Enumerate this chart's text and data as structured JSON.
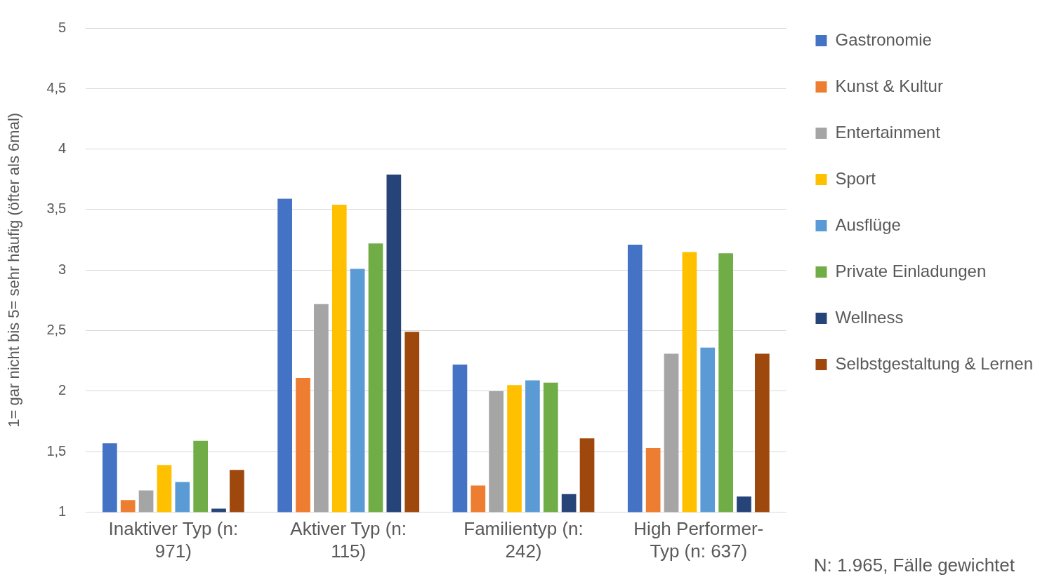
{
  "chart_data": {
    "type": "bar",
    "ylabel": "1= gar nicht bis 5= sehr häufig (öfter als 6mal)",
    "categories": [
      "Inaktiver Typ (n: 971)",
      "Aktiver Typ (n: 115)",
      "Familientyp (n: 242)",
      "High Performer-Typ (n: 637)"
    ],
    "series": [
      {
        "name": "Gastronomie",
        "color": "#4472c4",
        "values": [
          1.57,
          3.59,
          2.22,
          3.21
        ]
      },
      {
        "name": "Kunst & Kultur",
        "color": "#ed7d31",
        "values": [
          1.1,
          2.11,
          1.22,
          1.53
        ]
      },
      {
        "name": "Entertainment",
        "color": "#a5a5a5",
        "values": [
          1.18,
          2.72,
          2.0,
          2.31
        ]
      },
      {
        "name": "Sport",
        "color": "#ffc000",
        "values": [
          1.39,
          3.54,
          2.05,
          3.15
        ]
      },
      {
        "name": "Ausflüge",
        "color": "#5b9bd5",
        "values": [
          1.25,
          3.01,
          2.09,
          2.36
        ]
      },
      {
        "name": "Private Einladungen",
        "color": "#70ad47",
        "values": [
          1.59,
          3.22,
          2.07,
          3.14
        ]
      },
      {
        "name": "Wellness",
        "color": "#264478",
        "values": [
          1.03,
          3.79,
          1.15,
          1.13
        ]
      },
      {
        "name": "Selbstgestaltung & Lernen",
        "color": "#9e480e",
        "values": [
          1.35,
          2.49,
          1.61,
          2.31
        ]
      }
    ],
    "ylim": [
      1,
      5
    ],
    "yticks": [
      1,
      {
        "value": 1.5,
        "label": "1,5"
      },
      2,
      {
        "value": 2.5,
        "label": "2,5"
      },
      3,
      {
        "value": 3.5,
        "label": "3,5"
      },
      4,
      {
        "value": 4.5,
        "label": "4,5"
      },
      5
    ],
    "grid": "y",
    "legend": "right",
    "annotations": [
      "N: 1.965, Fälle gewichtet"
    ]
  }
}
